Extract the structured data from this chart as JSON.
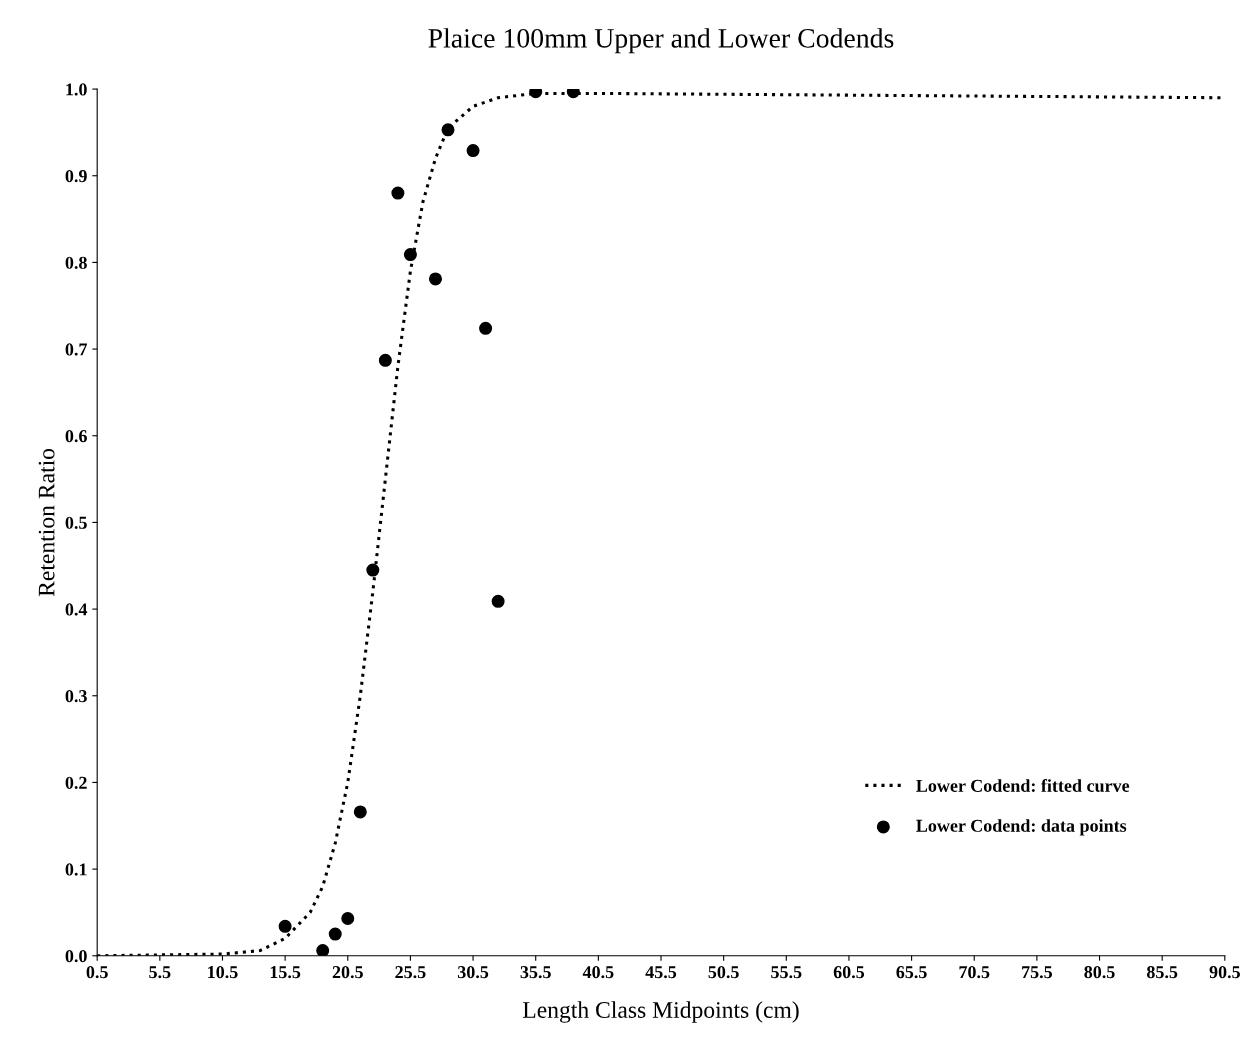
{
  "chart_data": {
    "type": "scatter",
    "title": "Plaice 100mm Upper and Lower Codends",
    "xlabel": "Length Class Midpoints (cm)",
    "ylabel": "Retention Ratio",
    "xlim": [
      0.5,
      90.5
    ],
    "xticks": [
      0.5,
      5.5,
      10.5,
      15.5,
      20.5,
      25.5,
      30.5,
      35.5,
      40.5,
      45.5,
      50.5,
      55.5,
      60.5,
      65.5,
      70.5,
      75.5,
      80.5,
      85.5,
      90.5
    ],
    "ylim": [
      0.0,
      1.0
    ],
    "yticks": [
      {
        "value": 0,
        "label": "0.0"
      },
      0.1,
      0.2,
      0.3,
      0.4,
      0.5,
      0.6,
      0.7,
      0.8,
      0.9,
      {
        "value": 1,
        "label": "1.0"
      }
    ],
    "grid": false,
    "legend": "bottom right",
    "series": [
      {
        "name": "Lower Codend: fitted curve",
        "type": "line",
        "color": "#000000",
        "line_style": "dotted",
        "marker": "none",
        "x": [
          0.5,
          10.5,
          13.5,
          15.5,
          17.5,
          18.5,
          19.5,
          20.5,
          21.5,
          22.5,
          23.5,
          24.5,
          25.5,
          26.5,
          27.5,
          28.5,
          30.5,
          32.5,
          35.5,
          40.5,
          60.5,
          90.5
        ],
        "values": [
          0.0,
          0.002,
          0.006,
          0.02,
          0.05,
          0.08,
          0.13,
          0.2,
          0.3,
          0.42,
          0.55,
          0.68,
          0.79,
          0.87,
          0.92,
          0.955,
          0.98,
          0.99,
          0.995,
          0.995,
          0.993,
          0.99
        ]
      },
      {
        "name": "Lower Codend: data points",
        "color": "#000000",
        "marker": "circle",
        "x": [
          15.5,
          18.5,
          19.5,
          20.5,
          21.5,
          22.5,
          23.5,
          24.5,
          25.5,
          27.5,
          28.5,
          30.5,
          31.5,
          32.5,
          35.5,
          38.5
        ],
        "values": [
          0.034,
          0.006,
          0.025,
          0.043,
          0.166,
          0.445,
          0.687,
          0.88,
          0.809,
          0.781,
          0.953,
          0.929,
          0.724,
          0.409,
          0.997,
          0.997
        ]
      }
    ]
  }
}
